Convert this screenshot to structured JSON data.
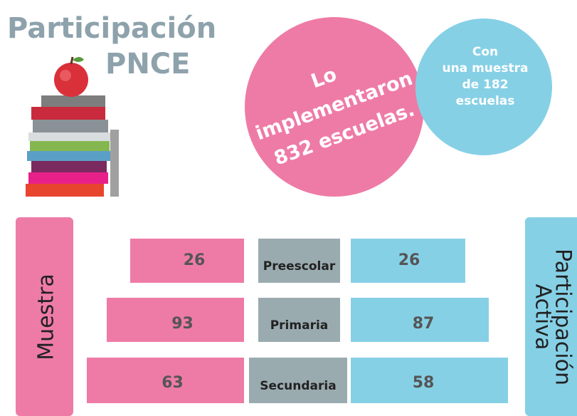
{
  "header": {
    "title": "Participación",
    "subtitle": "PNCE"
  },
  "pink_circle": {
    "lines": [
      "Lo",
      "implementaron",
      "832 escuelas."
    ]
  },
  "blue_circle": {
    "lines": [
      "Con",
      "una muestra",
      "de 182",
      "escuelas"
    ]
  },
  "left_label": "Muestra",
  "right_label": {
    "lines": [
      "Participación",
      "Activa"
    ]
  },
  "rows": [
    {
      "level": "Preescolar",
      "muestra": 26,
      "participacion": 26
    },
    {
      "level": "Primaria",
      "muestra": 93,
      "participacion": 87
    },
    {
      "level": "Secundaria",
      "muestra": 63,
      "participacion": 58
    }
  ]
}
